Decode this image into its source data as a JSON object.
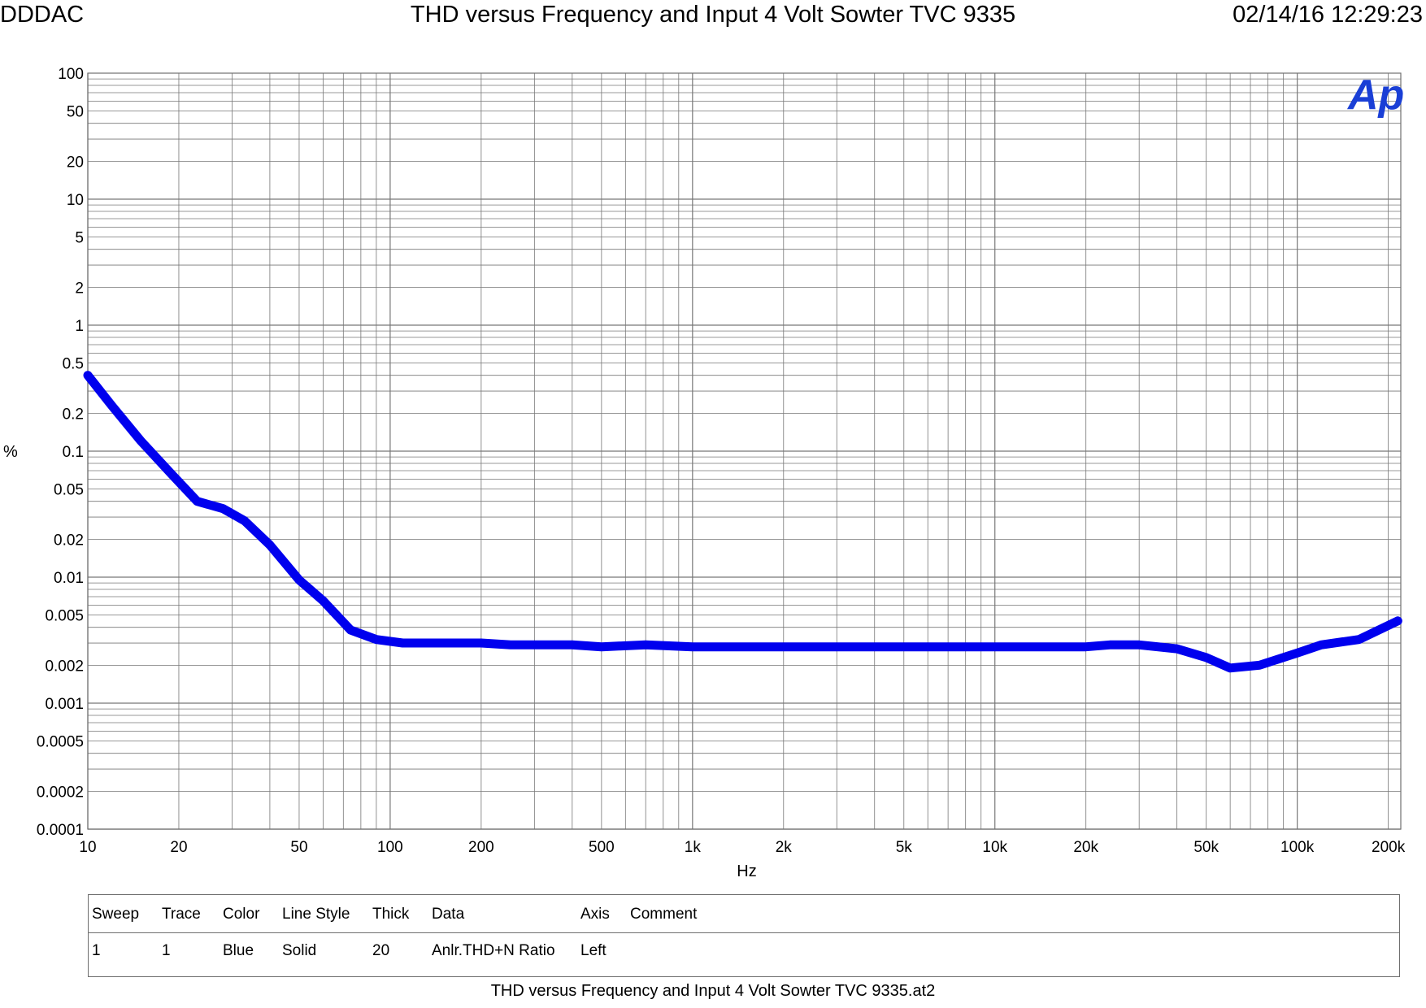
{
  "header": {
    "left": "DDDAC",
    "title": "THD versus Frequency and Input 4 Volt Sowter TVC 9335",
    "timestamp": "02/14/16 12:29:23"
  },
  "logo": {
    "text": "Ap",
    "color": "#1a3fd6"
  },
  "footer": {
    "file_name": "THD versus Frequency and Input 4 Volt Sowter TVC 9335.at2"
  },
  "legend": {
    "headers": {
      "sweep": "Sweep",
      "trace": "Trace",
      "color": "Color",
      "line_style": "Line Style",
      "thick": "Thick",
      "data": "Data",
      "axis": "Axis",
      "comment": "Comment"
    },
    "rows": [
      {
        "sweep": "1",
        "trace": "1",
        "color": "Blue",
        "line_style": "Solid",
        "thick": "20",
        "data": "Anlr.THD+N Ratio",
        "axis": "Left",
        "comment": ""
      }
    ]
  },
  "chart_data": {
    "type": "line",
    "title": "THD versus Frequency and Input 4 Volt Sowter TVC 9335",
    "xlabel": "Hz",
    "ylabel": "%",
    "x_scale": "log",
    "y_scale": "log",
    "xlim": [
      10,
      220000
    ],
    "ylim": [
      0.0001,
      100
    ],
    "grid": true,
    "x_ticks": [
      {
        "value": 10,
        "label": "10"
      },
      {
        "value": 20,
        "label": "20"
      },
      {
        "value": 50,
        "label": "50"
      },
      {
        "value": 100,
        "label": "100"
      },
      {
        "value": 200,
        "label": "200"
      },
      {
        "value": 500,
        "label": "500"
      },
      {
        "value": 1000,
        "label": "1k"
      },
      {
        "value": 2000,
        "label": "2k"
      },
      {
        "value": 5000,
        "label": "5k"
      },
      {
        "value": 10000,
        "label": "10k"
      },
      {
        "value": 20000,
        "label": "20k"
      },
      {
        "value": 50000,
        "label": "50k"
      },
      {
        "value": 100000,
        "label": "100k"
      },
      {
        "value": 200000,
        "label": "200k"
      }
    ],
    "y_ticks": [
      {
        "value": 100,
        "label": "100"
      },
      {
        "value": 50,
        "label": "50"
      },
      {
        "value": 20,
        "label": "20"
      },
      {
        "value": 10,
        "label": "10"
      },
      {
        "value": 5,
        "label": "5"
      },
      {
        "value": 2,
        "label": "2"
      },
      {
        "value": 1,
        "label": "1"
      },
      {
        "value": 0.5,
        "label": "0.5"
      },
      {
        "value": 0.2,
        "label": "0.2"
      },
      {
        "value": 0.1,
        "label": "0.1"
      },
      {
        "value": 0.05,
        "label": "0.05"
      },
      {
        "value": 0.02,
        "label": "0.02"
      },
      {
        "value": 0.01,
        "label": "0.01"
      },
      {
        "value": 0.005,
        "label": "0.005"
      },
      {
        "value": 0.002,
        "label": "0.002"
      },
      {
        "value": 0.001,
        "label": "0.001"
      },
      {
        "value": 0.0005,
        "label": "0.0005"
      },
      {
        "value": 0.0002,
        "label": "0.0002"
      },
      {
        "value": 0.0001,
        "label": "0.0001"
      }
    ],
    "series": [
      {
        "color": "#0000ee",
        "line_style": "solid",
        "x": [
          10,
          12,
          15,
          19,
          23,
          28,
          33,
          40,
          50,
          60,
          74,
          90,
          110,
          200,
          250,
          400,
          500,
          700,
          1000,
          1500,
          2000,
          3000,
          5000,
          7000,
          10000,
          15000,
          20000,
          24000,
          30000,
          40000,
          50000,
          60000,
          75000,
          100000,
          120000,
          160000,
          215000
        ],
        "y": [
          0.4,
          0.23,
          0.12,
          0.065,
          0.04,
          0.035,
          0.028,
          0.018,
          0.0095,
          0.0065,
          0.0038,
          0.0032,
          0.003,
          0.003,
          0.0029,
          0.0029,
          0.0028,
          0.0029,
          0.0028,
          0.0028,
          0.0028,
          0.0028,
          0.0028,
          0.0028,
          0.0028,
          0.0028,
          0.0028,
          0.0029,
          0.0029,
          0.0027,
          0.0023,
          0.0019,
          0.002,
          0.0025,
          0.0029,
          0.0032,
          0.0045
        ]
      }
    ]
  }
}
